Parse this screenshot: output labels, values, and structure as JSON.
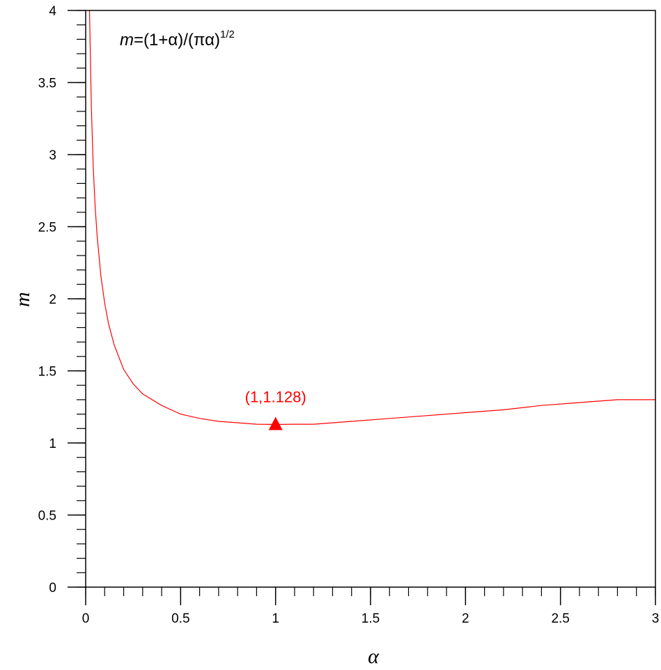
{
  "chart_data": {
    "type": "line",
    "xlabel": "α",
    "ylabel": "m",
    "xlim": [
      0,
      3
    ],
    "ylim": [
      0,
      4
    ],
    "x_ticks": [
      0,
      0.5,
      1,
      1.5,
      2,
      2.5,
      3
    ],
    "x_tick_labels": [
      "0",
      "0.5",
      "1",
      "1.5",
      "2",
      "2.5",
      "3"
    ],
    "y_ticks": [
      0,
      0.5,
      1,
      1.5,
      2,
      2.5,
      3,
      3.5,
      4
    ],
    "y_tick_labels": [
      "0",
      "0.5",
      "1",
      "1.5",
      "2",
      "2.5",
      "3",
      "3.5",
      "4"
    ],
    "x_minor_step": 0.1,
    "y_minor_step": 0.1,
    "grid": false,
    "formula": {
      "var": "m",
      "rhs": "=(1+α)/(πα)",
      "exponent": "1/2"
    },
    "series": [
      {
        "color": "#ff0000",
        "x": [
          0.02,
          0.03,
          0.04,
          0.05,
          0.06,
          0.08,
          0.1,
          0.12,
          0.15,
          0.2,
          0.25,
          0.3,
          0.4,
          0.5,
          0.6,
          0.7,
          0.8,
          0.9,
          1.0,
          1.1,
          1.2,
          1.4,
          1.6,
          1.8,
          2.0,
          2.2,
          2.4,
          2.6,
          2.8,
          3.0
        ],
        "y": [
          4.07,
          3.32,
          2.91,
          2.64,
          2.44,
          2.16,
          1.97,
          1.83,
          1.68,
          1.51,
          1.41,
          1.34,
          1.26,
          1.2,
          1.17,
          1.15,
          1.14,
          1.13,
          1.128,
          1.13,
          1.13,
          1.15,
          1.17,
          1.19,
          1.21,
          1.23,
          1.26,
          1.28,
          1.3,
          1.3
        ]
      }
    ],
    "annotations": [
      {
        "x": 1,
        "y": 1.128,
        "label": "(1,1.128)",
        "marker": "triangle",
        "color": "#ff0000"
      }
    ]
  }
}
